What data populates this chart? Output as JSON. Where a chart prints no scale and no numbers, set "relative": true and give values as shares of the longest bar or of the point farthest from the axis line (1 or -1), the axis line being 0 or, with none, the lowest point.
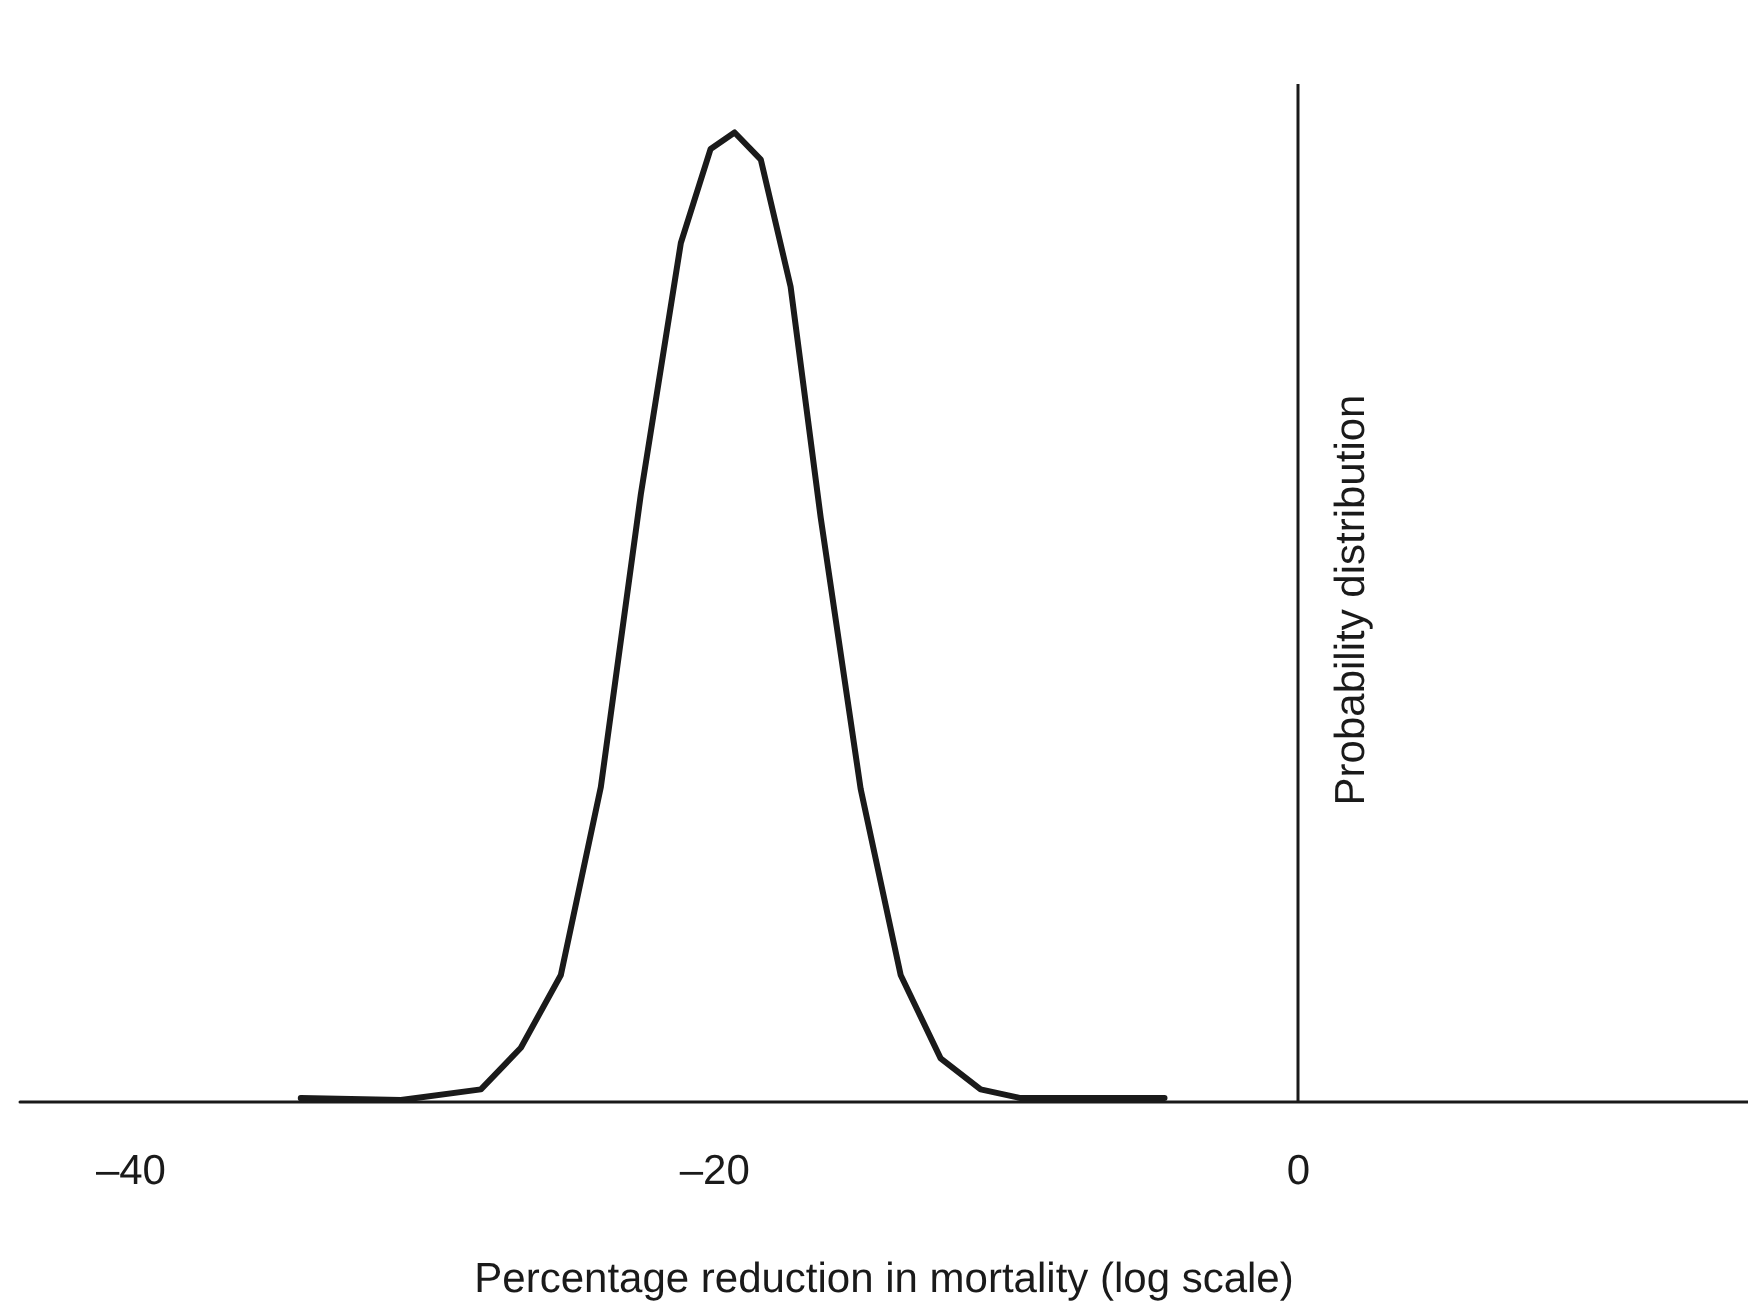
{
  "chart_data": {
    "type": "line",
    "xlabel": "Percentage reduction in mortality (log scale)",
    "ylabel": "Probability distribution",
    "relative": true,
    "xlim": [
      -43.8,
      15.4
    ],
    "xticks": [
      {
        "value": -40,
        "label": "–40"
      },
      {
        "value": -20,
        "label": "–20"
      },
      0
    ],
    "marker": "none",
    "line_style": "solid",
    "ref_lines": [
      {
        "axis": "x",
        "value": 0
      }
    ],
    "series": [
      {
        "color": "#1a1a1a",
        "x": [
          -34.18,
          -30.75,
          -28.01,
          -26.64,
          -25.27,
          -23.9,
          -22.53,
          -21.16,
          -20.14,
          -19.32,
          -18.42,
          -17.4,
          -16.37,
          -15.0,
          -13.63,
          -12.26,
          -10.89,
          -9.52,
          -4.59
        ],
        "values": [
          0.004,
          0.002,
          0.013,
          0.056,
          0.131,
          0.325,
          0.627,
          0.886,
          0.983,
          1,
          0.972,
          0.841,
          0.603,
          0.323,
          0.131,
          0.045,
          0.013,
          0.004,
          0.004
        ]
      }
    ]
  }
}
